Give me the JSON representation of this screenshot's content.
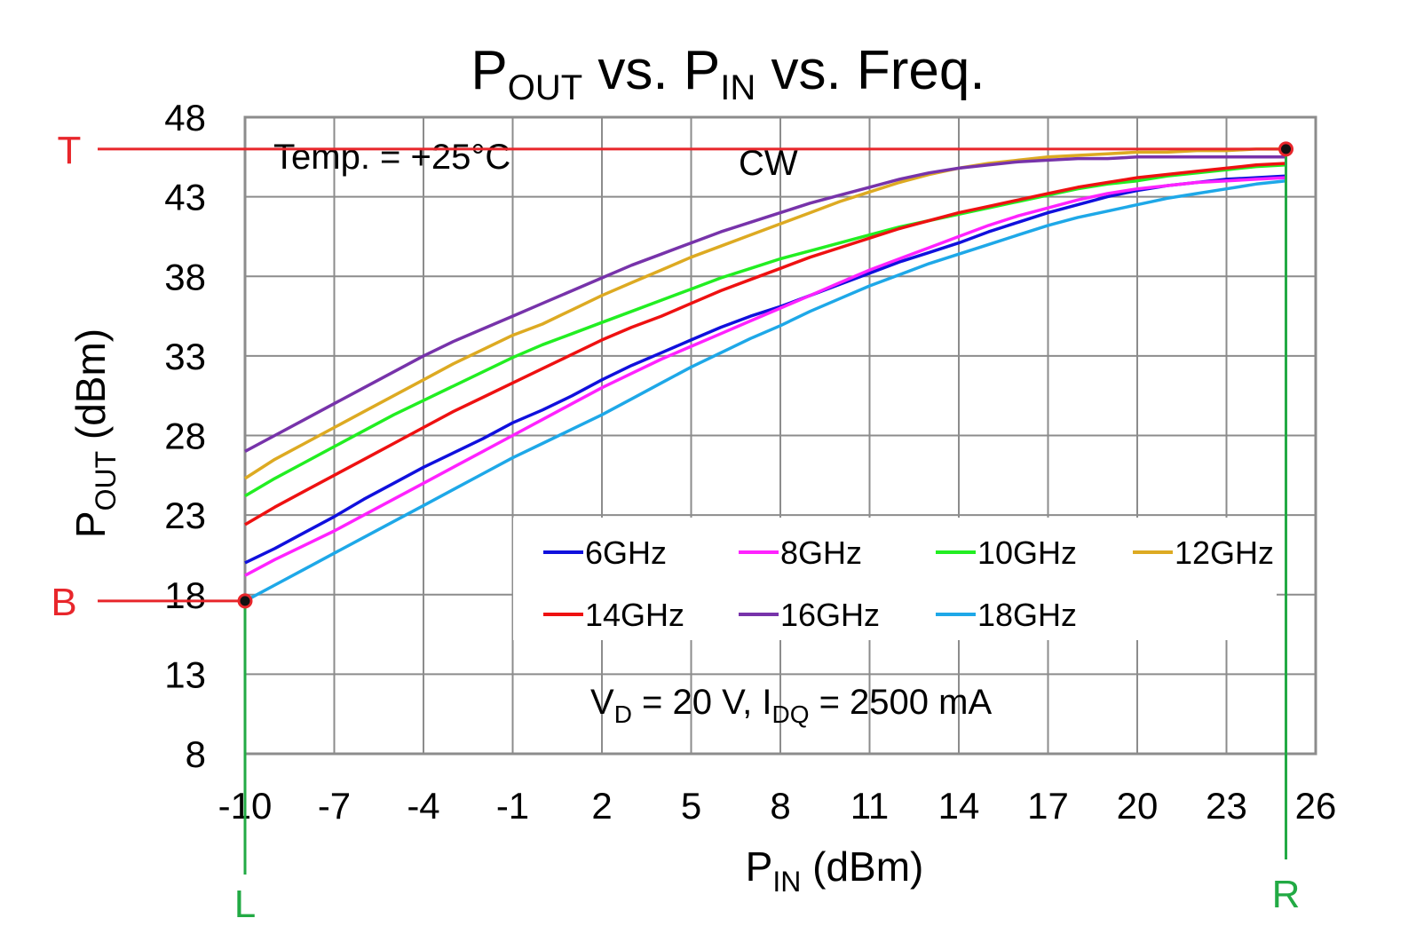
{
  "chart_data": {
    "type": "line",
    "title": {
      "main": "P",
      "main_sub": "OUT",
      "mid": " vs. P",
      "mid_sub": "IN",
      "tail": " vs. Freq."
    },
    "xlabel": {
      "main": "P",
      "sub": "IN",
      "tail": " (dBm)"
    },
    "ylabel": {
      "main": "P",
      "sub": "OUT",
      "tail": " (dBm)"
    },
    "xlim": [
      -10,
      26
    ],
    "ylim": [
      8,
      48
    ],
    "xticks": [
      -10,
      -7,
      -4,
      -1,
      2,
      5,
      8,
      11,
      14,
      17,
      20,
      23,
      26
    ],
    "yticks": [
      8,
      13,
      18,
      23,
      28,
      33,
      38,
      43,
      48
    ],
    "xtick_labels": [
      "-10",
      "-7",
      "-4",
      "-1",
      "2",
      "5",
      "8",
      "11",
      "14",
      "17",
      "20",
      "23",
      "26"
    ],
    "ytick_labels": [
      "8",
      "13",
      "18",
      "23",
      "28",
      "33",
      "38",
      "43",
      "48"
    ],
    "grid": true,
    "legend": "inside-center",
    "annotations": {
      "temp": "Temp. = +25°C",
      "cw": "CW",
      "bias": {
        "a": "V",
        "a_sub": "D",
        "b": " = 20 V, I",
        "b_sub": "DQ",
        "c": " = 2500 mA"
      }
    },
    "markers": {
      "T": {
        "label": "T",
        "y": 46
      },
      "B": {
        "label": "B",
        "y": 17.6
      },
      "L": {
        "label": "L",
        "x": -10
      },
      "R": {
        "label": "R",
        "x": 25
      },
      "colors": {
        "horizontal": "#e8262b",
        "vertical": "#22aa44"
      }
    },
    "x": [
      -10,
      -9,
      -8,
      -7,
      -6,
      -5,
      -4,
      -3,
      -2,
      -1,
      0,
      1,
      2,
      3,
      4,
      5,
      6,
      7,
      8,
      9,
      10,
      11,
      12,
      13,
      14,
      15,
      16,
      17,
      18,
      19,
      20,
      21,
      22,
      23,
      24,
      25
    ],
    "series": [
      {
        "name": "6GHz",
        "color": "#1010dd",
        "values": [
          20.0,
          20.9,
          21.9,
          22.9,
          24.0,
          25.0,
          26.0,
          26.9,
          27.8,
          28.8,
          29.6,
          30.5,
          31.5,
          32.4,
          33.2,
          34.0,
          34.8,
          35.5,
          36.1,
          36.8,
          37.5,
          38.2,
          38.9,
          39.5,
          40.1,
          40.8,
          41.4,
          42.0,
          42.5,
          43.0,
          43.4,
          43.7,
          43.9,
          44.1,
          44.2,
          44.3
        ]
      },
      {
        "name": "8GHz",
        "color": "#ff22ff",
        "values": [
          19.2,
          20.2,
          21.1,
          22.0,
          23.0,
          24.0,
          25.0,
          26.0,
          27.0,
          28.0,
          29.0,
          30.0,
          31.0,
          31.9,
          32.8,
          33.6,
          34.4,
          35.2,
          36.0,
          36.8,
          37.6,
          38.4,
          39.1,
          39.8,
          40.5,
          41.2,
          41.8,
          42.3,
          42.8,
          43.2,
          43.5,
          43.7,
          43.9,
          44.0,
          44.1,
          44.2
        ]
      },
      {
        "name": "10GHz",
        "color": "#22ee22",
        "values": [
          24.2,
          25.3,
          26.3,
          27.3,
          28.3,
          29.3,
          30.2,
          31.1,
          32.0,
          32.9,
          33.7,
          34.4,
          35.1,
          35.8,
          36.5,
          37.2,
          37.9,
          38.5,
          39.1,
          39.6,
          40.1,
          40.6,
          41.1,
          41.5,
          41.9,
          42.3,
          42.7,
          43.1,
          43.5,
          43.8,
          44.0,
          44.3,
          44.5,
          44.7,
          44.9,
          45.0
        ]
      },
      {
        "name": "12GHz",
        "color": "#ddaa22",
        "values": [
          25.3,
          26.5,
          27.5,
          28.5,
          29.5,
          30.5,
          31.5,
          32.5,
          33.4,
          34.3,
          35.0,
          35.9,
          36.8,
          37.6,
          38.4,
          39.2,
          39.9,
          40.6,
          41.3,
          42.0,
          42.7,
          43.3,
          43.9,
          44.4,
          44.8,
          45.1,
          45.3,
          45.5,
          45.6,
          45.7,
          45.8,
          45.8,
          45.9,
          45.9,
          46.0,
          46.0
        ]
      },
      {
        "name": "14GHz",
        "color": "#ee1111",
        "values": [
          22.4,
          23.5,
          24.5,
          25.5,
          26.5,
          27.5,
          28.5,
          29.5,
          30.4,
          31.3,
          32.2,
          33.1,
          34.0,
          34.8,
          35.5,
          36.3,
          37.1,
          37.8,
          38.5,
          39.2,
          39.8,
          40.4,
          41.0,
          41.5,
          42.0,
          42.4,
          42.8,
          43.2,
          43.6,
          43.9,
          44.2,
          44.4,
          44.6,
          44.8,
          45.0,
          45.1
        ]
      },
      {
        "name": "16GHz",
        "color": "#7733aa",
        "values": [
          27.0,
          28.0,
          29.0,
          30.0,
          31.0,
          32.0,
          33.0,
          33.9,
          34.7,
          35.5,
          36.3,
          37.1,
          37.9,
          38.7,
          39.4,
          40.1,
          40.8,
          41.4,
          42.0,
          42.6,
          43.1,
          43.6,
          44.1,
          44.5,
          44.8,
          45.0,
          45.2,
          45.3,
          45.4,
          45.4,
          45.5,
          45.5,
          45.5,
          45.5,
          45.5,
          45.5
        ]
      },
      {
        "name": "18GHz",
        "color": "#1ea8e8",
        "values": [
          17.6,
          18.6,
          19.6,
          20.6,
          21.6,
          22.6,
          23.6,
          24.6,
          25.6,
          26.6,
          27.5,
          28.4,
          29.3,
          30.3,
          31.3,
          32.3,
          33.2,
          34.1,
          34.9,
          35.8,
          36.6,
          37.4,
          38.1,
          38.8,
          39.4,
          40.0,
          40.6,
          41.2,
          41.7,
          42.1,
          42.5,
          42.9,
          43.2,
          43.5,
          43.8,
          44.0
        ]
      }
    ]
  }
}
